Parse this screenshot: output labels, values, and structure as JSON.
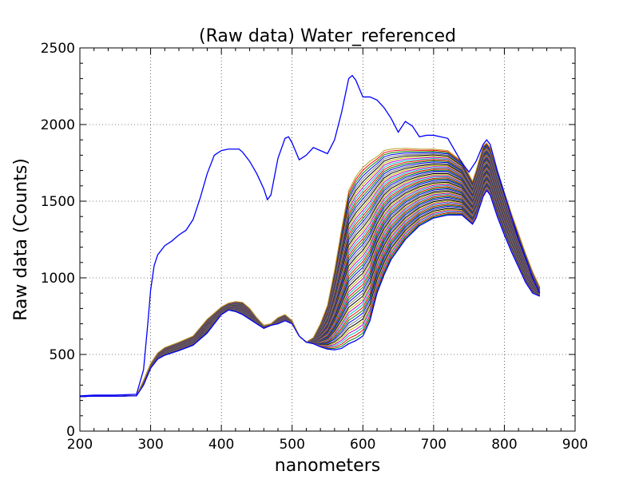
{
  "chart_data": {
    "type": "line",
    "title": "(Raw data) Water_referenced",
    "xlabel": "nanometers",
    "ylabel": "Raw data (Counts)",
    "xlim": [
      200,
      900
    ],
    "ylim": [
      0,
      2500
    ],
    "xticks": [
      200,
      300,
      400,
      500,
      600,
      700,
      800,
      900
    ],
    "yticks": [
      0,
      500,
      1000,
      1500,
      2000,
      2500
    ],
    "xtick_labels": [
      "200",
      "300",
      "400",
      "500",
      "600",
      "700",
      "800",
      "900"
    ],
    "ytick_labels": [
      "0",
      "500",
      "1000",
      "1500",
      "2000",
      "2500"
    ],
    "grid": true,
    "grid_style": "dotted",
    "legend": "none",
    "colors": {
      "reference": "#0000ff",
      "palette": [
        "#0000ff",
        "#008000",
        "#ff0000",
        "#00bfbf",
        "#bf00bf",
        "#bfbf00",
        "#000000",
        "#808080"
      ],
      "top_band_edge": "#b8a02a"
    },
    "reference_series": {
      "x": [
        200,
        220,
        250,
        280,
        290,
        296,
        300,
        305,
        310,
        320,
        330,
        340,
        350,
        360,
        370,
        380,
        390,
        400,
        410,
        420,
        425,
        430,
        440,
        450,
        460,
        465,
        470,
        480,
        490,
        495,
        500,
        510,
        520,
        530,
        540,
        550,
        560,
        570,
        580,
        585,
        590,
        600,
        610,
        620,
        630,
        640,
        650,
        660,
        670,
        680,
        690,
        700,
        720,
        740,
        750,
        760,
        770,
        775,
        780,
        790,
        800,
        810,
        820,
        830,
        840,
        850
      ],
      "y": [
        230,
        235,
        235,
        240,
        400,
        700,
        920,
        1080,
        1150,
        1210,
        1240,
        1280,
        1310,
        1380,
        1520,
        1680,
        1800,
        1830,
        1840,
        1840,
        1840,
        1820,
        1760,
        1680,
        1580,
        1510,
        1540,
        1780,
        1910,
        1920,
        1880,
        1770,
        1800,
        1850,
        1830,
        1810,
        1900,
        2080,
        2300,
        2320,
        2290,
        2180,
        2180,
        2160,
        2110,
        2040,
        1950,
        2020,
        1990,
        1920,
        1930,
        1930,
        1910,
        1750,
        1690,
        1760,
        1870,
        1900,
        1870,
        1700,
        1550,
        1400,
        1250,
        1130,
        1000,
        900
      ]
    },
    "band_bounds": {
      "x": [
        200,
        220,
        250,
        280,
        290,
        300,
        310,
        320,
        340,
        360,
        380,
        400,
        410,
        420,
        430,
        440,
        450,
        460,
        470,
        480,
        490,
        500,
        510,
        520,
        530,
        540,
        550,
        560,
        570,
        580,
        590,
        600,
        610,
        620,
        630,
        640,
        660,
        680,
        700,
        720,
        740,
        755,
        760,
        770,
        775,
        780,
        790,
        800,
        810,
        820,
        830,
        840,
        850
      ],
      "upper": [
        225,
        228,
        228,
        232,
        330,
        440,
        510,
        545,
        580,
        620,
        730,
        810,
        835,
        845,
        840,
        800,
        740,
        690,
        700,
        740,
        760,
        720,
        620,
        580,
        610,
        700,
        820,
        1050,
        1320,
        1570,
        1660,
        1720,
        1760,
        1790,
        1830,
        1840,
        1845,
        1840,
        1840,
        1830,
        1760,
        1630,
        1700,
        1860,
        1880,
        1850,
        1700,
        1560,
        1420,
        1290,
        1160,
        1040,
        940
      ],
      "lower": [
        225,
        228,
        228,
        230,
        300,
        410,
        470,
        495,
        525,
        560,
        640,
        760,
        790,
        780,
        760,
        730,
        700,
        670,
        690,
        700,
        720,
        700,
        620,
        580,
        570,
        550,
        535,
        530,
        540,
        570,
        590,
        620,
        720,
        900,
        1020,
        1120,
        1250,
        1340,
        1390,
        1410,
        1410,
        1350,
        1390,
        1530,
        1570,
        1540,
        1400,
        1280,
        1170,
        1070,
        970,
        900,
        880
      ]
    },
    "band_series_count": 60
  }
}
